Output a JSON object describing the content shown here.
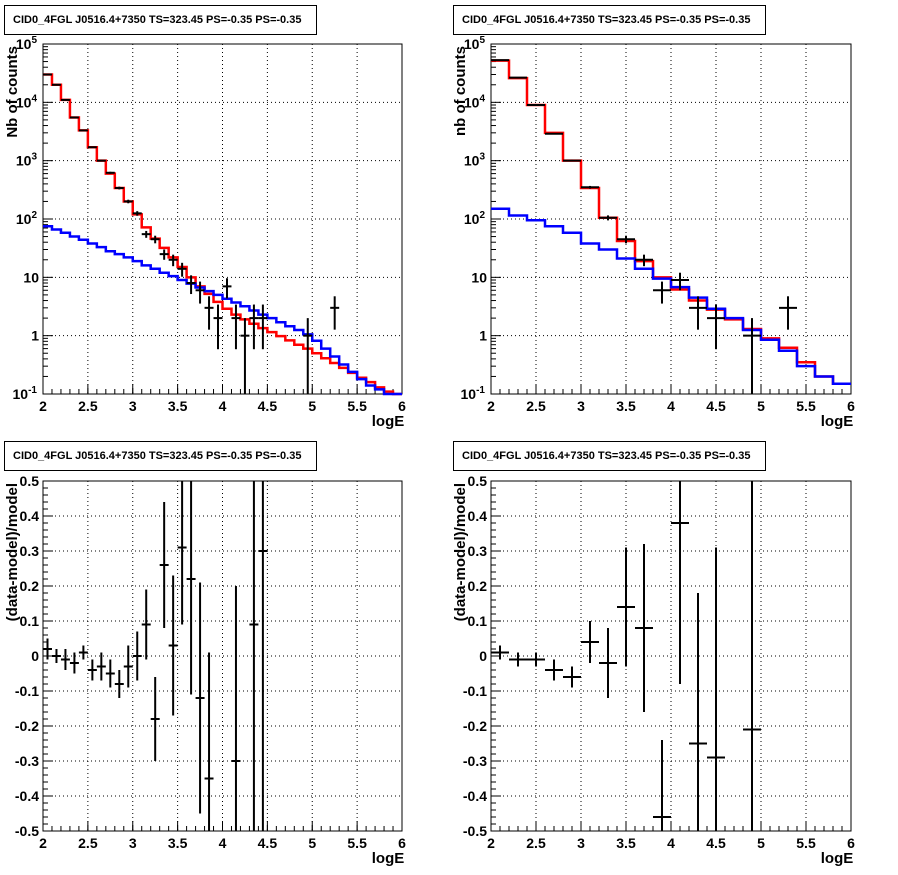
{
  "chart_data": [
    {
      "type": "histogram",
      "title": "CID0_4FGL J0516.4+7350 TS=323.45 PS=-0.35 PS=-0.35",
      "xlabel": "logE",
      "ylabel": "Nb of counts",
      "xlim": [
        2,
        6
      ],
      "ylim": [
        0.1,
        100000
      ],
      "log_y": true,
      "grid": true,
      "x_ticks": [
        "2",
        "2.5",
        "3",
        "3.5",
        "4",
        "4.5",
        "5",
        "5.5",
        "6"
      ],
      "y_ticks": [
        "10^-1",
        "1",
        "10",
        "10^2",
        "10^3",
        "10^4",
        "10^5"
      ],
      "bin_edges": [
        2.0,
        2.1,
        2.2,
        2.3,
        2.4,
        2.5,
        2.6,
        2.7,
        2.8,
        2.9,
        3.0,
        3.1,
        3.2,
        3.3,
        3.4,
        3.5,
        3.6,
        3.7,
        3.8,
        3.9,
        4.0,
        4.1,
        4.2,
        4.3,
        4.4,
        4.5,
        4.6,
        4.7,
        4.8,
        4.9,
        5.0,
        5.1,
        5.2,
        5.3,
        5.4,
        5.5,
        5.6,
        5.7,
        5.8,
        5.9,
        6.0
      ],
      "series": [
        {
          "color": "#ff0000",
          "values": [
            30000,
            20000,
            11000,
            5500,
            3300,
            1700,
            1000,
            600,
            340,
            200,
            120,
            72,
            46,
            32,
            22,
            15,
            10,
            7,
            5.2,
            3.8,
            2.9,
            2.3,
            1.9,
            1.6,
            1.35,
            1.15,
            0.98,
            0.83,
            0.7,
            0.6,
            0.5,
            0.41,
            0.34,
            0.28,
            0.23,
            0.19,
            0.16,
            0.13,
            0.11,
            0.1
          ]
        },
        {
          "color": "#0000ff",
          "values": [
            75,
            66,
            58,
            50,
            44,
            38,
            33,
            28,
            25,
            22,
            19,
            16,
            14,
            12,
            10.5,
            9,
            7.8,
            6.7,
            5.8,
            5,
            4.3,
            3.7,
            3.2,
            2.7,
            2.3,
            2,
            1.7,
            1.45,
            1.25,
            1.05,
            0.82,
            0.6,
            0.44,
            0.32,
            0.24,
            0.18,
            0.14,
            0.12,
            0.1,
            0.08
          ]
        },
        {
          "color": "#000000",
          "values": [
            30000,
            20000,
            11000,
            5500,
            3300,
            1700,
            1000,
            620,
            340,
            200,
            125,
            55,
            45,
            25,
            20,
            14,
            8,
            6,
            3,
            2,
            7,
            2,
            1,
            2,
            2,
            0,
            0,
            0,
            0,
            1,
            0,
            0,
            3,
            0,
            0,
            0,
            0,
            0,
            0,
            0
          ]
        }
      ]
    },
    {
      "type": "histogram",
      "title": "CID0_4FGL J0516.4+7350 TS=323.45 PS=-0.35 PS=-0.35",
      "xlabel": "logE",
      "ylabel": "nb of counts",
      "xlim": [
        2,
        6
      ],
      "ylim": [
        0.1,
        100000
      ],
      "log_y": true,
      "grid": true,
      "x_ticks": [
        "2",
        "2.5",
        "3",
        "3.5",
        "4",
        "4.5",
        "5",
        "5.5",
        "6"
      ],
      "y_ticks": [
        "10^-1",
        "1",
        "10",
        "10^2",
        "10^3",
        "10^4",
        "10^5"
      ],
      "bin_edges": [
        2.0,
        2.2,
        2.4,
        2.6,
        2.8,
        3.0,
        3.2,
        3.4,
        3.6,
        3.8,
        4.0,
        4.2,
        4.4,
        4.6,
        4.8,
        5.0,
        5.2,
        5.4,
        5.6,
        5.8,
        6.0
      ],
      "series": [
        {
          "color": "#ff0000",
          "values": [
            52000,
            26000,
            9000,
            3000,
            1000,
            340,
            105,
            42,
            19,
            10,
            6.2,
            4,
            2.8,
            1.9,
            1.3,
            0.9,
            0.62,
            0.35,
            0.2,
            0.15
          ]
        },
        {
          "color": "#0000ff",
          "values": [
            150,
            115,
            95,
            75,
            58,
            38,
            30,
            21,
            14,
            9.5,
            6.8,
            4.5,
            2.9,
            2.0,
            1.25,
            0.85,
            0.55,
            0.3,
            0.2,
            0.15
          ]
        },
        {
          "color": "#000000",
          "values": [
            53000,
            26500,
            9000,
            2900,
            1000,
            350,
            105,
            45,
            20,
            6,
            9,
            3,
            2,
            0,
            1,
            0,
            3,
            0,
            0,
            0
          ]
        }
      ]
    },
    {
      "type": "scatter",
      "title": "CID0_4FGL J0516.4+7350 TS=323.45 PS=-0.35 PS=-0.35",
      "xlabel": "logE",
      "ylabel": "(data-model)/model",
      "xlim": [
        2,
        6
      ],
      "ylim": [
        -0.5,
        0.5
      ],
      "grid": true,
      "x_ticks": [
        "2",
        "2.5",
        "3",
        "3.5",
        "4",
        "4.5",
        "5",
        "5.5",
        "6"
      ],
      "y_ticks": [
        "-0.5",
        "-0.4",
        "-0.3",
        "-0.2",
        "-0.1",
        "0",
        "0.1",
        "0.2",
        "0.3",
        "0.4",
        "0.5"
      ],
      "x_halfwidth": 0.05,
      "points": [
        {
          "x": 2.05,
          "y": 0.02,
          "err": 0.03
        },
        {
          "x": 2.15,
          "y": 0.0,
          "err": 0.02
        },
        {
          "x": 2.25,
          "y": -0.01,
          "err": 0.03
        },
        {
          "x": 2.35,
          "y": -0.02,
          "err": 0.03
        },
        {
          "x": 2.45,
          "y": 0.01,
          "err": 0.02
        },
        {
          "x": 2.55,
          "y": -0.04,
          "err": 0.03
        },
        {
          "x": 2.65,
          "y": -0.03,
          "err": 0.04
        },
        {
          "x": 2.75,
          "y": -0.05,
          "err": 0.04
        },
        {
          "x": 2.85,
          "y": -0.08,
          "err": 0.04
        },
        {
          "x": 2.95,
          "y": -0.03,
          "err": 0.06
        },
        {
          "x": 3.05,
          "y": 0.0,
          "err": 0.07
        },
        {
          "x": 3.15,
          "y": 0.09,
          "err": 0.1
        },
        {
          "x": 3.25,
          "y": -0.18,
          "err": 0.12
        },
        {
          "x": 3.35,
          "y": 0.26,
          "err": 0.18
        },
        {
          "x": 3.45,
          "y": 0.03,
          "err": 0.2
        },
        {
          "x": 3.55,
          "y": 0.31,
          "err": 0.22
        },
        {
          "x": 3.65,
          "y": 0.22,
          "err": 0.33
        },
        {
          "x": 3.75,
          "y": -0.12,
          "err": 0.33
        },
        {
          "x": 3.85,
          "y": -0.35,
          "err": 0.36
        },
        {
          "x": 4.15,
          "y": -0.3,
          "err": 0.5
        },
        {
          "x": 4.35,
          "y": 0.09,
          "err": 0.6
        },
        {
          "x": 4.45,
          "y": 0.3,
          "err": 0.9
        }
      ]
    },
    {
      "type": "scatter",
      "title": "CID0_4FGL J0516.4+7350 TS=323.45 PS=-0.35 PS=-0.35",
      "xlabel": "logE",
      "ylabel": "(data-model)/model",
      "xlim": [
        2,
        6
      ],
      "ylim": [
        -0.5,
        0.5
      ],
      "grid": true,
      "x_ticks": [
        "2",
        "2.5",
        "3",
        "3.5",
        "4",
        "4.5",
        "5",
        "5.5",
        "6"
      ],
      "y_ticks": [
        "-0.5",
        "-0.4",
        "-0.3",
        "-0.2",
        "-0.1",
        "0",
        "0.1",
        "0.2",
        "0.3",
        "0.4",
        "0.5"
      ],
      "x_halfwidth": 0.1,
      "points": [
        {
          "x": 2.1,
          "y": 0.01,
          "err": 0.02
        },
        {
          "x": 2.3,
          "y": -0.01,
          "err": 0.02
        },
        {
          "x": 2.5,
          "y": -0.01,
          "err": 0.02
        },
        {
          "x": 2.7,
          "y": -0.04,
          "err": 0.03
        },
        {
          "x": 2.9,
          "y": -0.06,
          "err": 0.03
        },
        {
          "x": 3.1,
          "y": 0.04,
          "err": 0.06
        },
        {
          "x": 3.3,
          "y": -0.02,
          "err": 0.1
        },
        {
          "x": 3.5,
          "y": 0.14,
          "err": 0.17
        },
        {
          "x": 3.7,
          "y": 0.08,
          "err": 0.24
        },
        {
          "x": 3.9,
          "y": -0.46,
          "err": 0.22
        },
        {
          "x": 4.1,
          "y": 0.38,
          "err": 0.46
        },
        {
          "x": 4.3,
          "y": -0.25,
          "err": 0.43
        },
        {
          "x": 4.5,
          "y": -0.29,
          "err": 0.6
        },
        {
          "x": 4.9,
          "y": -0.21,
          "err": 0.9
        }
      ]
    }
  ]
}
